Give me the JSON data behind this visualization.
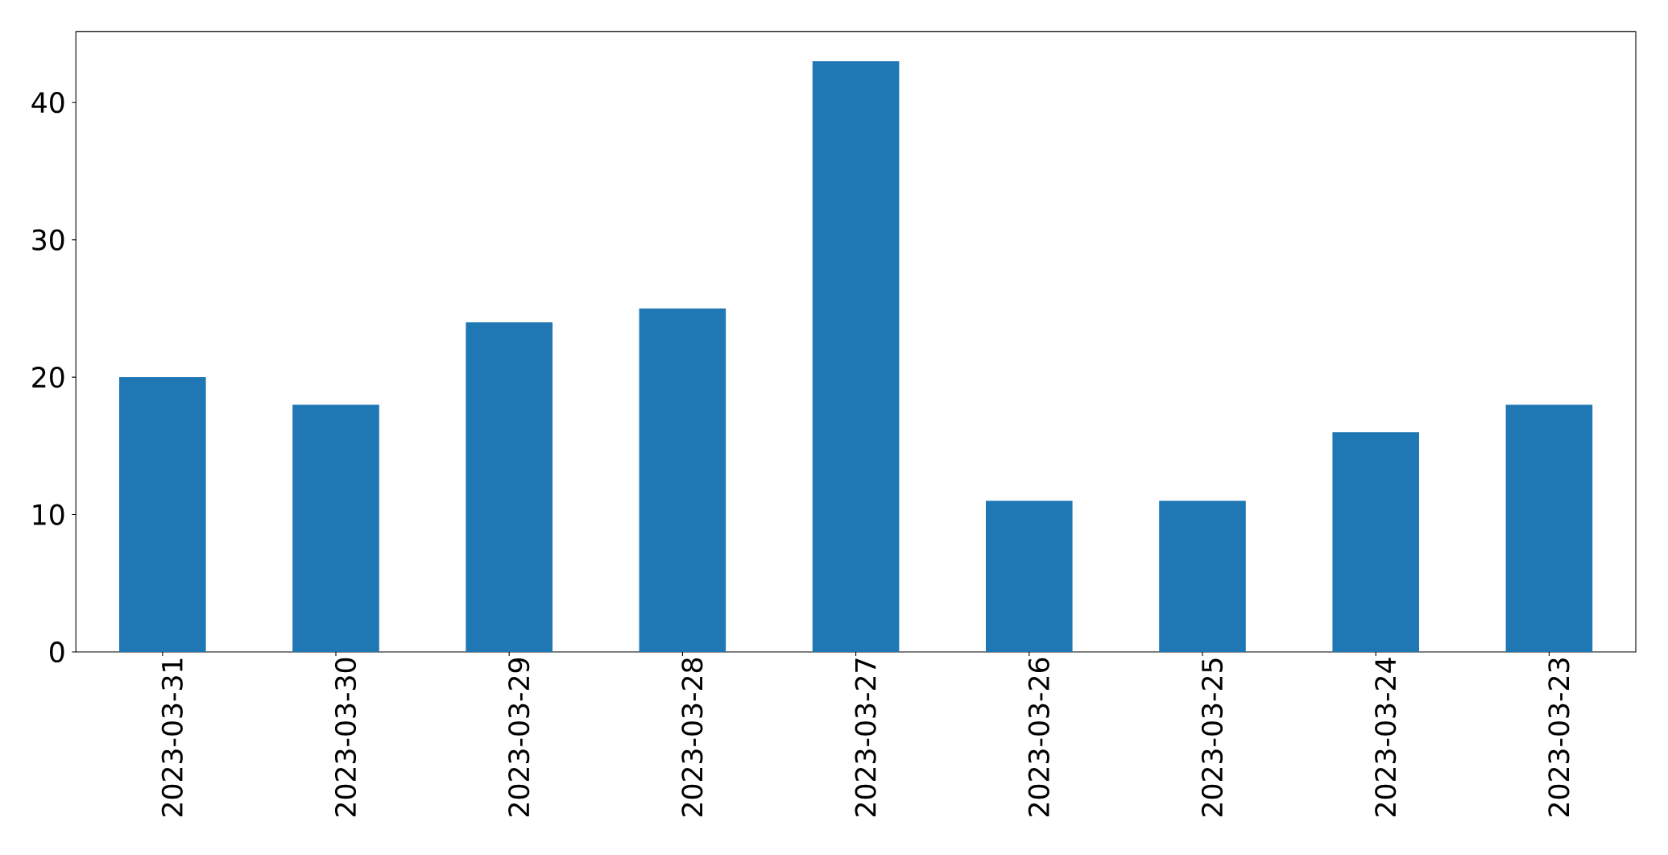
{
  "chart_data": {
    "type": "bar",
    "categories": [
      "2023-03-31",
      "2023-03-30",
      "2023-03-29",
      "2023-03-28",
      "2023-03-27",
      "2023-03-26",
      "2023-03-25",
      "2023-03-24",
      "2023-03-23"
    ],
    "values": [
      20,
      18,
      24,
      25,
      43,
      11,
      11,
      16,
      18
    ],
    "color": "#1f77b4",
    "ylim": [
      0,
      45.15
    ],
    "yticks": [
      0,
      10,
      20,
      30,
      40
    ]
  }
}
